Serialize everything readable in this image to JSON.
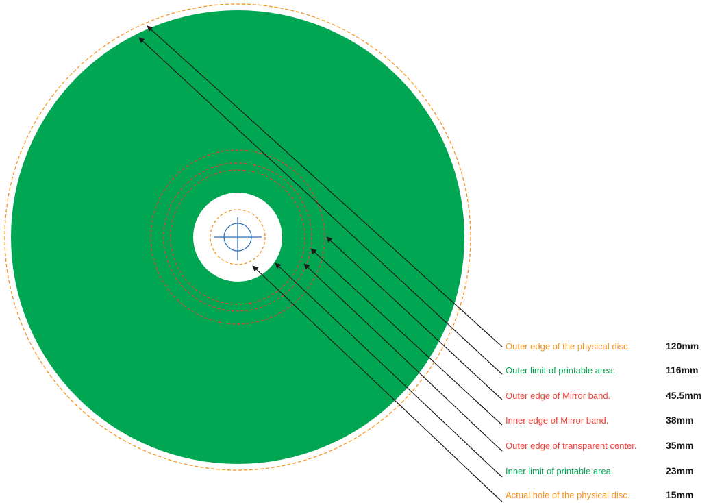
{
  "colors": {
    "disc": "#00a651",
    "orange": "#f7941d",
    "red": "#ef4136",
    "green": "#00a651",
    "arrow": "#1a1a1a",
    "crosshair": "#2e6db4"
  },
  "labels": [
    {
      "text": "Outer edge of the physical disc.",
      "value": "120mm",
      "color": "#f7941d"
    },
    {
      "text": "Outer limit of printable area.",
      "value": "116mm",
      "color": "#00a651"
    },
    {
      "text": "Outer edge of Mirror band.",
      "value": "45.5mm",
      "color": "#ef4136"
    },
    {
      "text": "Inner edge of Mirror band.",
      "value": "38mm",
      "color": "#ef4136"
    },
    {
      "text": "Outer edge of transparent center.",
      "value": "35mm",
      "color": "#ef4136"
    },
    {
      "text": "Inner limit of printable area.",
      "value": "23mm",
      "color": "#00a651"
    },
    {
      "text": "Actual hole of the physical disc.",
      "value": "15mm",
      "color": "#f7941d"
    }
  ]
}
